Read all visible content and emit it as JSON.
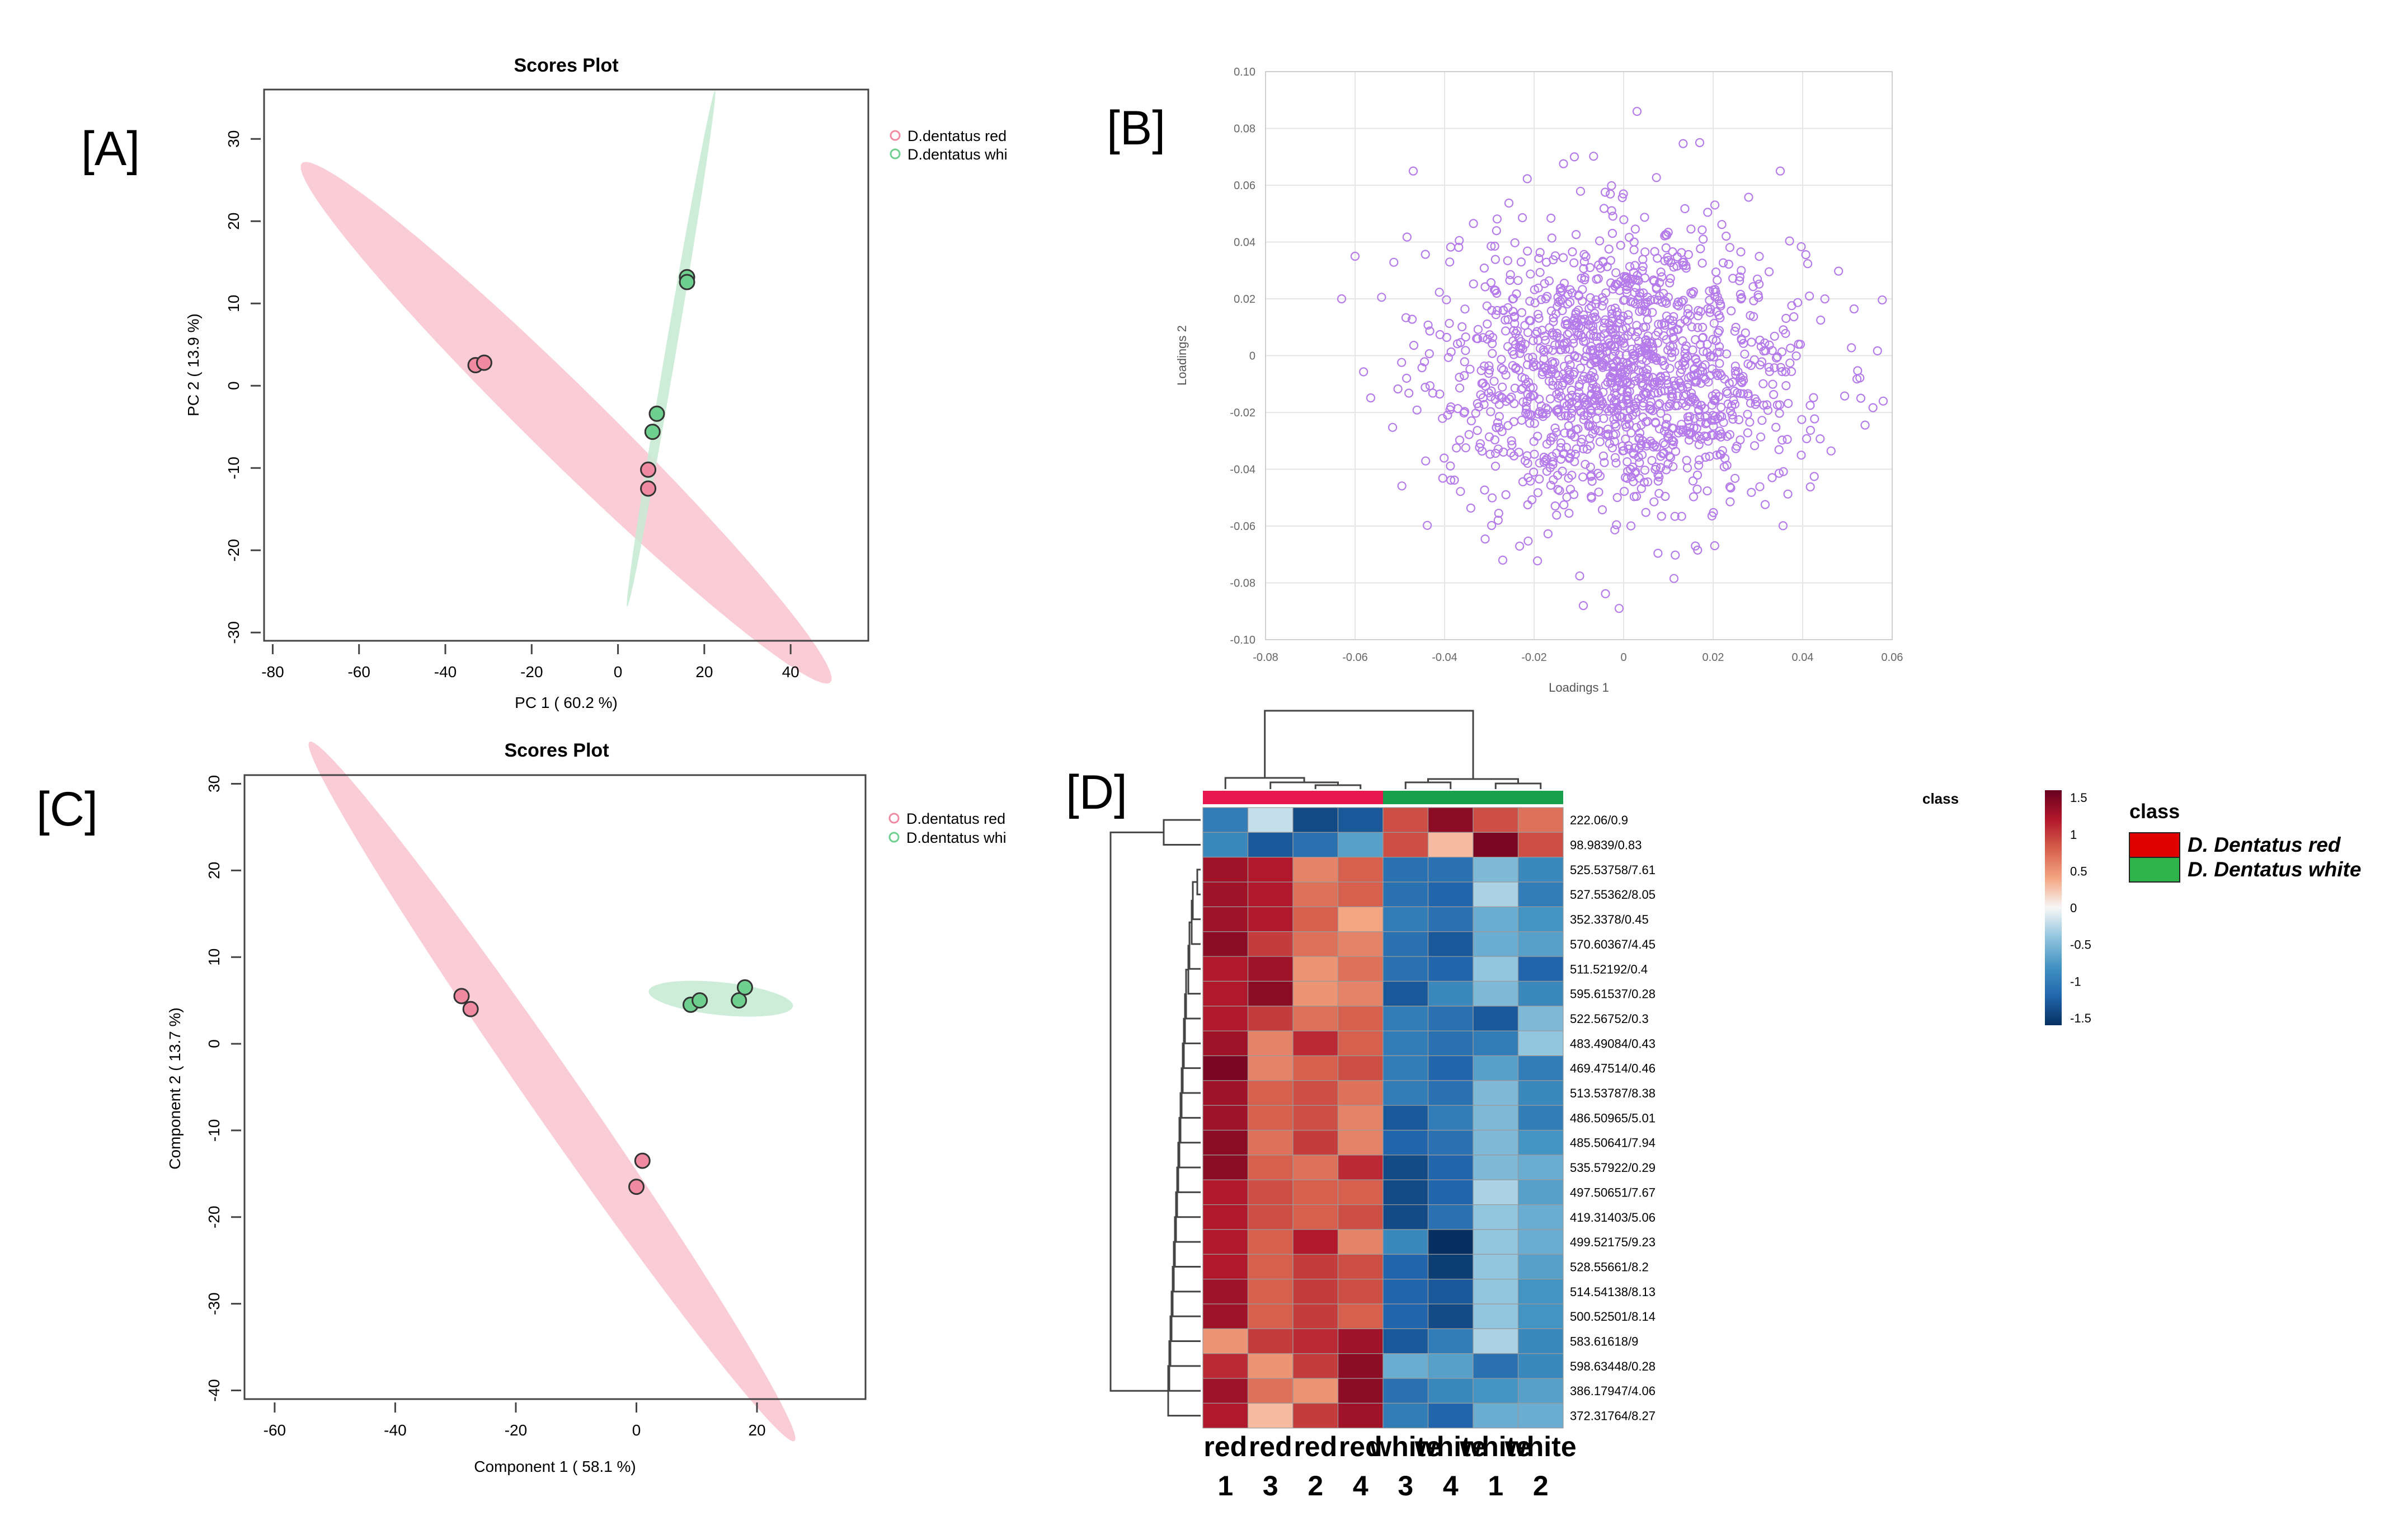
{
  "panels": {
    "A": "[A]",
    "B": "[B]",
    "C": "[C]",
    "D": "[D]"
  },
  "colors": {
    "red_group": "#f4a3b6",
    "red_point": "#f08aa0",
    "green_group": "#b7e4c7",
    "green_point": "#6fcf8f",
    "loading_point": "#b57bea",
    "heat_red_class": "#e00000",
    "heat_green_class": "#2fb34a"
  },
  "chart_data": [
    {
      "id": "A",
      "type": "scatter",
      "title": "Scores Plot",
      "xlabel": "PC 1 ( 60.2 %)",
      "ylabel": "PC 2 ( 13.9 %)",
      "xlim": [
        -82,
        58
      ],
      "ylim": [
        -31,
        36
      ],
      "xticks": [
        "-80",
        "-60",
        "-40",
        "-20",
        "0",
        "20",
        "40"
      ],
      "xtick_values": [
        -80,
        -60,
        -40,
        -20,
        0,
        20,
        40
      ],
      "yticks": [
        "-30",
        "-20",
        "-10",
        "0",
        "10",
        "20",
        "30"
      ],
      "ytick_values": [
        -30,
        -20,
        -10,
        0,
        10,
        20,
        30
      ],
      "legend": [
        "D.dentatus red",
        "D.dentatus whi"
      ],
      "legend_position": "outside-right",
      "grid": false,
      "series": [
        {
          "name": "D.dentatus red",
          "color": "#f08aa0",
          "points": [
            [
              -33,
              2.5
            ],
            [
              -31,
              2.8
            ],
            [
              7,
              -10.2
            ],
            [
              7,
              -12.5
            ]
          ],
          "ellipse": {
            "cx": -12,
            "cy": -4.5,
            "rx": 69,
            "ry": 5.5,
            "angle_deg": -27
          }
        },
        {
          "name": "D.dentatus whi",
          "color": "#6fcf8f",
          "points": [
            [
              16,
              13.2
            ],
            [
              16,
              12.6
            ],
            [
              9,
              -3.4
            ],
            [
              8,
              -5.6
            ]
          ],
          "ellipse": {
            "cx": 12.3,
            "cy": 4.5,
            "rx": 33,
            "ry": 1.2,
            "angle_deg": 72
          }
        }
      ]
    },
    {
      "id": "B",
      "type": "scatter",
      "title": "",
      "xlabel": "Loadings 1",
      "ylabel": "Loadings 2",
      "xlim": [
        -0.08,
        0.06
      ],
      "ylim": [
        -0.1,
        0.1
      ],
      "xticks": [
        "-0.08",
        "-0.06",
        "-0.04",
        "-0.02",
        "0",
        "0.02",
        "0.04",
        "0.06"
      ],
      "xtick_values": [
        -0.08,
        -0.06,
        -0.04,
        -0.02,
        0,
        0.02,
        0.04,
        0.06
      ],
      "yticks": [
        "-0.10",
        "-0.08",
        "-0.06",
        "-0.04",
        "-0.02",
        "0",
        "0.02",
        "0.04",
        "0.06",
        "0.08",
        "0.10"
      ],
      "ytick_values": [
        -0.1,
        -0.08,
        -0.06,
        -0.04,
        -0.02,
        0,
        0.02,
        0.04,
        0.06,
        0.08,
        0.1
      ],
      "grid": true,
      "point_count": 1500,
      "distribution": {
        "center": [
          0,
          -0.005
        ],
        "sd": [
          0.02,
          0.024
        ],
        "clip_x": [
          -0.065,
          0.058
        ],
        "clip_y": [
          -0.09,
          0.086
        ]
      },
      "outliers": [
        [
          0.003,
          0.086
        ],
        [
          0.017,
          0.075
        ],
        [
          -0.011,
          0.07
        ],
        [
          -0.047,
          0.065
        ],
        [
          0.035,
          0.065
        ],
        [
          -0.06,
          0.035
        ],
        [
          -0.063,
          0.02
        ],
        [
          -0.009,
          -0.088
        ],
        [
          -0.027,
          -0.072
        ],
        [
          0.053,
          -0.015
        ],
        [
          0.058,
          -0.016
        ],
        [
          -0.001,
          -0.089
        ]
      ]
    },
    {
      "id": "C",
      "type": "scatter",
      "title": "Scores Plot",
      "xlabel": "Component 1 ( 58.1 %)",
      "ylabel": "Component 2 ( 13.7 %)",
      "xlim": [
        -65,
        38
      ],
      "ylim": [
        -41,
        31
      ],
      "xticks": [
        "-60",
        "-40",
        "-20",
        "0",
        "20"
      ],
      "xtick_values": [
        -60,
        -40,
        -20,
        0,
        20
      ],
      "yticks": [
        "-40",
        "-30",
        "-20",
        "-10",
        "0",
        "10",
        "20",
        "30"
      ],
      "ytick_values": [
        -40,
        -30,
        -20,
        -10,
        0,
        10,
        20,
        30
      ],
      "legend": [
        "D.dentatus red",
        "D.dentatus whi"
      ],
      "legend_position": "outside-right",
      "grid": false,
      "series": [
        {
          "name": "D.dentatus red",
          "color": "#f08aa0",
          "points": [
            [
              -29,
              5.5
            ],
            [
              -27.5,
              4
            ],
            [
              1,
              -13.5
            ],
            [
              0,
              -16.5
            ]
          ],
          "ellipse": {
            "cx": -14,
            "cy": -5.5,
            "rx": 57,
            "ry": 3.6,
            "angle_deg": -45
          }
        },
        {
          "name": "D.dentatus whi",
          "color": "#6fcf8f",
          "points": [
            [
              9,
              4.5
            ],
            [
              10.5,
              5
            ],
            [
              17,
              5
            ],
            [
              18,
              6.5
            ]
          ],
          "ellipse": {
            "cx": 14,
            "cy": 5.2,
            "rx": 12,
            "ry": 1.9,
            "angle_deg": -4
          }
        }
      ]
    },
    {
      "id": "D",
      "type": "heatmap",
      "columns": [
        {
          "group": "red",
          "num": "1"
        },
        {
          "group": "red",
          "num": "3"
        },
        {
          "group": "red",
          "num": "2"
        },
        {
          "group": "red",
          "num": "4"
        },
        {
          "group": "white",
          "num": "3"
        },
        {
          "group": "white",
          "num": "4"
        },
        {
          "group": "white",
          "num": "1"
        },
        {
          "group": "white",
          "num": "2"
        }
      ],
      "column_class": [
        "red",
        "red",
        "red",
        "red",
        "white",
        "white",
        "white",
        "white"
      ],
      "class_annotation_label": "class",
      "rows": [
        "222.06/0.9",
        "98.9839/0.83",
        "525.53758/7.61",
        "527.55362/8.05",
        "352.3378/0.45",
        "570.60367/4.45",
        "511.52192/0.4",
        "595.61537/0.28",
        "522.56752/0.3",
        "483.49084/0.43",
        "469.47514/0.46",
        "513.53787/8.38",
        "486.50965/5.01",
        "485.50641/7.94",
        "535.57922/0.29",
        "497.50651/7.67",
        "419.31403/5.06",
        "499.52175/9.23",
        "528.55661/8.2",
        "514.54138/8.13",
        "500.52501/8.14",
        "583.61618/9",
        "598.63448/0.28",
        "386.17947/4.06",
        "372.31764/8.27"
      ],
      "values": [
        [
          -1.0,
          -0.2,
          -1.4,
          -1.3,
          0.9,
          1.4,
          0.9,
          0.7
        ],
        [
          -0.9,
          -1.3,
          -1.1,
          -0.7,
          0.9,
          0.3,
          1.5,
          0.9
        ],
        [
          1.3,
          1.2,
          0.6,
          0.8,
          -1.1,
          -1.1,
          -0.5,
          -0.9
        ],
        [
          1.3,
          1.2,
          0.7,
          0.8,
          -1.1,
          -1.2,
          -0.3,
          -1.0
        ],
        [
          1.3,
          1.2,
          0.8,
          0.4,
          -1.0,
          -1.1,
          -0.6,
          -0.8
        ],
        [
          1.4,
          1.0,
          0.7,
          0.6,
          -1.1,
          -1.3,
          -0.6,
          -0.7
        ],
        [
          1.2,
          1.3,
          0.5,
          0.7,
          -1.1,
          -1.2,
          -0.4,
          -1.2
        ],
        [
          1.2,
          1.4,
          0.5,
          0.6,
          -1.3,
          -0.9,
          -0.5,
          -0.9
        ],
        [
          1.2,
          1.0,
          0.7,
          0.8,
          -1.0,
          -1.1,
          -1.3,
          -0.5
        ],
        [
          1.3,
          0.6,
          1.1,
          0.8,
          -1.0,
          -1.1,
          -1.0,
          -0.4
        ],
        [
          1.5,
          0.6,
          0.8,
          0.9,
          -1.0,
          -1.2,
          -0.7,
          -1.0
        ],
        [
          1.3,
          0.8,
          0.9,
          0.7,
          -1.0,
          -1.1,
          -0.5,
          -0.9
        ],
        [
          1.3,
          0.8,
          0.9,
          0.6,
          -1.3,
          -1.0,
          -0.5,
          -1.0
        ],
        [
          1.4,
          0.7,
          1.0,
          0.6,
          -1.2,
          -1.1,
          -0.5,
          -0.8
        ],
        [
          1.4,
          0.8,
          0.7,
          1.1,
          -1.4,
          -1.2,
          -0.5,
          -0.6
        ],
        [
          1.2,
          0.9,
          0.8,
          0.8,
          -1.4,
          -1.2,
          -0.3,
          -0.7
        ],
        [
          1.2,
          0.9,
          0.8,
          0.9,
          -1.4,
          -1.1,
          -0.4,
          -0.6
        ],
        [
          1.2,
          0.8,
          1.2,
          0.6,
          -0.9,
          -1.6,
          -0.4,
          -0.6
        ],
        [
          1.2,
          0.8,
          1.0,
          0.9,
          -1.2,
          -1.5,
          -0.4,
          -0.7
        ],
        [
          1.3,
          0.8,
          1.0,
          0.9,
          -1.2,
          -1.3,
          -0.4,
          -0.8
        ],
        [
          1.3,
          0.8,
          1.0,
          0.8,
          -1.2,
          -1.4,
          -0.4,
          -0.8
        ],
        [
          0.5,
          1.0,
          1.1,
          1.3,
          -1.3,
          -1.0,
          -0.3,
          -0.9
        ],
        [
          1.1,
          0.5,
          1.0,
          1.4,
          -0.6,
          -0.7,
          -1.1,
          -0.9
        ],
        [
          1.3,
          0.7,
          0.5,
          1.4,
          -1.1,
          -0.9,
          -0.8,
          -0.7
        ],
        [
          1.2,
          0.3,
          1.0,
          1.3,
          -1.0,
          -1.2,
          -0.6,
          -0.6
        ]
      ],
      "color_scale": {
        "min": -1.6,
        "max": 1.6,
        "stops": [
          "#053061",
          "#2166ac",
          "#4393c3",
          "#92c5de",
          "#f7f7f7",
          "#f4a582",
          "#d6604d",
          "#b2182b",
          "#67001f"
        ],
        "ticks": [
          "1.5",
          "1",
          "0.5",
          "0",
          "-0.5",
          "-1",
          "-1.5"
        ],
        "tick_values": [
          1.5,
          1,
          0.5,
          0,
          -0.5,
          -1,
          -1.5
        ]
      },
      "legend": {
        "title": "class",
        "items": [
          {
            "label": "D. Dentatus red",
            "color": "#e00000"
          },
          {
            "label": "D. Dentatus white",
            "color": "#2fb34a"
          }
        ]
      }
    }
  ]
}
